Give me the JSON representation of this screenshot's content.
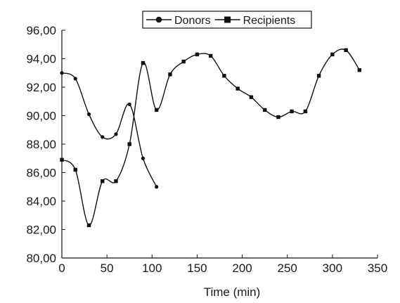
{
  "chart_data": {
    "type": "line",
    "title": "",
    "xlabel": "Time (min)",
    "ylabel": "",
    "xlim": [
      0,
      350
    ],
    "ylim": [
      80,
      96
    ],
    "x_ticks": [
      0,
      50,
      100,
      150,
      200,
      250,
      300,
      350
    ],
    "x_tick_labels": [
      "0",
      "50",
      "100",
      "150",
      "200",
      "250",
      "300",
      "350"
    ],
    "y_ticks": [
      80,
      82,
      84,
      86,
      88,
      90,
      92,
      94,
      96
    ],
    "y_tick_labels": [
      "80,00",
      "82,00",
      "84,00",
      "86,00",
      "88,00",
      "90,00",
      "92,00",
      "94,00",
      "96,00"
    ],
    "grid": false,
    "smooth": true,
    "legend_position": "top-center",
    "line_color": "#111111",
    "series": [
      {
        "name": "Donors",
        "marker": "circle",
        "x": [
          0,
          15,
          30,
          45,
          60,
          75,
          90,
          105
        ],
        "y": [
          93.0,
          92.6,
          90.1,
          88.5,
          88.7,
          90.8,
          87.0,
          85.0
        ]
      },
      {
        "name": "Recipients",
        "marker": "square",
        "x": [
          0,
          15,
          30,
          45,
          60,
          75,
          90,
          105,
          120,
          135,
          150,
          165,
          180,
          195,
          210,
          225,
          240,
          255,
          270,
          285,
          300,
          315,
          330
        ],
        "y": [
          86.9,
          86.2,
          82.3,
          85.4,
          85.4,
          88.0,
          93.7,
          90.4,
          92.9,
          93.8,
          94.3,
          94.2,
          92.8,
          91.9,
          91.3,
          90.4,
          89.9,
          90.3,
          90.3,
          92.8,
          94.3,
          94.6,
          93.2
        ]
      }
    ]
  }
}
